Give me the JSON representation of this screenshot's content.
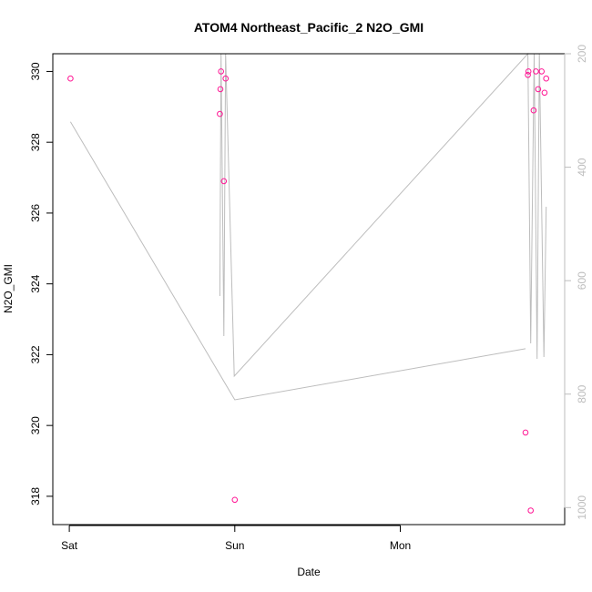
{
  "chart_data": {
    "type": "scatter",
    "title": "ATOM4 Northeast_Pacific_2 N2O_GMI",
    "xlabel": "Date",
    "ylabel": "N2O_GMI",
    "x_ticks": [
      "Sat",
      "Sun",
      "Mon"
    ],
    "ylim": [
      317.2,
      330.5
    ],
    "y_ticks": [
      318,
      320,
      322,
      324,
      326,
      328,
      330
    ],
    "y2_ticks": [
      200,
      400,
      600,
      800,
      1000
    ],
    "y2_range_top_to_bottom": [
      200,
      1030
    ],
    "colors": {
      "points": "#ff1493",
      "line": "#bdbdbd",
      "axis": "#000000",
      "right_axis": "#bdbdbd"
    },
    "series": [
      {
        "values": [
          {
            "x": "Sat 00:10",
            "y": 329.8
          },
          {
            "x": "Sat 21:50",
            "y": 328.8
          },
          {
            "x": "Sat 21:55",
            "y": 329.5
          },
          {
            "x": "Sat 22:00",
            "y": 330.0
          },
          {
            "x": "Sat 22:25",
            "y": 326.9
          },
          {
            "x": "Sat 22:40",
            "y": 329.8
          },
          {
            "x": "Sun 00:00",
            "y": 317.9
          },
          {
            "x": "Mon 18:10",
            "y": 319.8
          },
          {
            "x": "Mon 18:30",
            "y": 329.9
          },
          {
            "x": "Mon 18:35",
            "y": 330.0
          },
          {
            "x": "Mon 18:55",
            "y": 317.6
          },
          {
            "x": "Mon 19:20",
            "y": 328.9
          },
          {
            "x": "Mon 19:40",
            "y": 330.0
          },
          {
            "x": "Mon 20:00",
            "y": 329.5
          },
          {
            "x": "Mon 20:30",
            "y": 330.0
          },
          {
            "x": "Mon 20:55",
            "y": 329.4
          },
          {
            "x": "Mon 21:10",
            "y": 329.8
          }
        ]
      }
    ],
    "profile": {
      "axis": "right",
      "points": [
        {
          "x": "Sat 00:10",
          "y": 320
        },
        {
          "x": "Sun 00:00",
          "y": 810
        },
        {
          "x": "Mon 18:10",
          "y": 720
        }
      ]
    }
  }
}
